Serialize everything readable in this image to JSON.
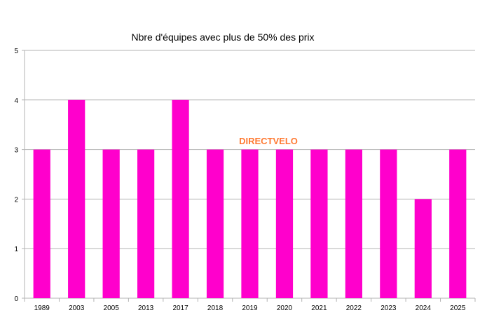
{
  "chart_data": {
    "type": "bar",
    "title": "Nbre d'équipes avec plus de 50% des prix",
    "xlabel": "",
    "ylabel": "",
    "categories": [
      "1989",
      "2003",
      "2005",
      "2013",
      "2017",
      "2018",
      "2019",
      "2020",
      "2021",
      "2022",
      "2023",
      "2024",
      "2025"
    ],
    "values": [
      3,
      4,
      3,
      3,
      4,
      3,
      3,
      3,
      3,
      3,
      3,
      2,
      3
    ],
    "ylim": [
      0,
      5
    ],
    "yticks": [
      0,
      1,
      2,
      3,
      4,
      5
    ],
    "grid": true,
    "legend": "none",
    "bar_color": "#ff00cc",
    "watermark": "DIRECTVELO",
    "watermark_color": "#ff7a33"
  }
}
